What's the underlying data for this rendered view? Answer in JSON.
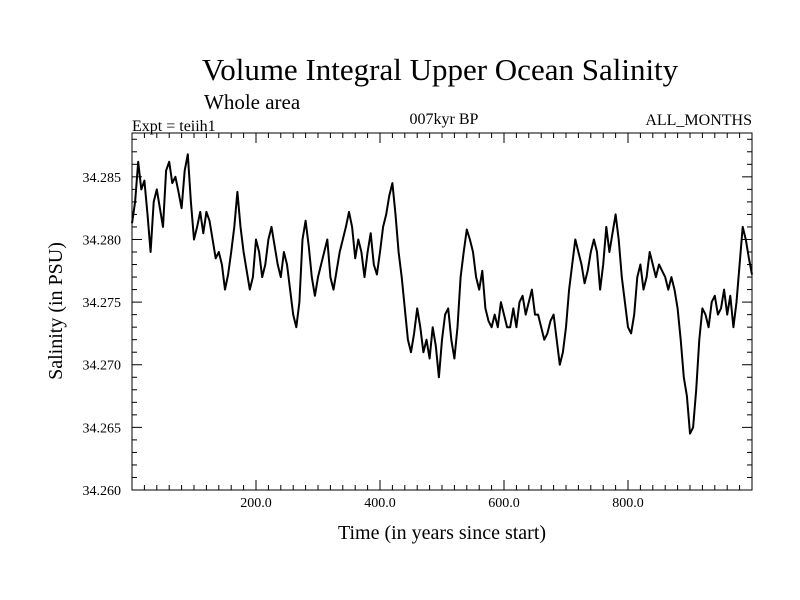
{
  "chart_data": {
    "type": "line",
    "title": "Volume Integral Upper Ocean Salinity",
    "subtitle": "Whole area",
    "expt": "Expt = teiih1",
    "period": "007kyr BP",
    "months": "ALL_MONTHS",
    "xlabel": "Time (in years since start)",
    "ylabel": "Salinity (in PSU)",
    "xlim": [
      0,
      1000
    ],
    "ylim": [
      34.26,
      34.2885
    ],
    "xticks": [
      200,
      400,
      600,
      800
    ],
    "xtick_labels": [
      "200.0",
      "400.0",
      "600.0",
      "800.0"
    ],
    "yticks": [
      34.26,
      34.265,
      34.27,
      34.275,
      34.28,
      34.285
    ],
    "ytick_labels": [
      "34.260",
      "34.265",
      "34.270",
      "34.275",
      "34.280",
      "34.285"
    ],
    "grid": false,
    "series": [
      {
        "color": "#000000",
        "x": [
          0,
          5,
          10,
          15,
          20,
          25,
          30,
          35,
          40,
          45,
          50,
          55,
          60,
          65,
          70,
          75,
          80,
          85,
          90,
          95,
          100,
          105,
          110,
          115,
          120,
          125,
          130,
          135,
          140,
          145,
          150,
          155,
          160,
          165,
          170,
          175,
          180,
          185,
          190,
          195,
          200,
          205,
          210,
          215,
          220,
          225,
          230,
          235,
          240,
          245,
          250,
          255,
          260,
          265,
          270,
          275,
          280,
          285,
          290,
          295,
          300,
          305,
          310,
          315,
          320,
          325,
          330,
          335,
          340,
          345,
          350,
          355,
          360,
          365,
          370,
          375,
          380,
          385,
          390,
          395,
          400,
          405,
          410,
          415,
          420,
          425,
          430,
          435,
          440,
          445,
          450,
          455,
          460,
          465,
          470,
          475,
          480,
          485,
          490,
          495,
          500,
          505,
          510,
          515,
          520,
          525,
          530,
          535,
          540,
          545,
          550,
          555,
          560,
          565,
          570,
          575,
          580,
          585,
          590,
          595,
          600,
          605,
          610,
          615,
          620,
          625,
          630,
          635,
          640,
          645,
          650,
          655,
          660,
          665,
          670,
          675,
          680,
          685,
          690,
          695,
          700,
          705,
          710,
          715,
          720,
          725,
          730,
          735,
          740,
          745,
          750,
          755,
          760,
          765,
          770,
          775,
          780,
          785,
          790,
          795,
          800,
          805,
          810,
          815,
          820,
          825,
          830,
          835,
          840,
          845,
          850,
          855,
          860,
          865,
          870,
          875,
          880,
          885,
          890,
          895,
          900,
          905,
          910,
          915,
          920,
          925,
          930,
          935,
          940,
          945,
          950,
          955,
          960,
          965,
          970,
          975,
          980,
          985,
          990,
          995,
          1000
        ],
        "y": [
          34.2813,
          34.283,
          34.2862,
          34.284,
          34.2847,
          34.282,
          34.279,
          34.283,
          34.284,
          34.2825,
          34.281,
          34.2855,
          34.2862,
          34.2845,
          34.285,
          34.2838,
          34.2825,
          34.2855,
          34.2868,
          34.283,
          34.28,
          34.281,
          34.2822,
          34.2805,
          34.2822,
          34.2815,
          34.28,
          34.2785,
          34.279,
          34.278,
          34.276,
          34.2772,
          34.279,
          34.281,
          34.2838,
          34.281,
          34.279,
          34.2775,
          34.276,
          34.277,
          34.28,
          34.279,
          34.277,
          34.278,
          34.28,
          34.281,
          34.2795,
          34.278,
          34.277,
          34.279,
          34.278,
          34.276,
          34.274,
          34.273,
          34.275,
          34.28,
          34.2815,
          34.2795,
          34.277,
          34.2755,
          34.277,
          34.278,
          34.279,
          34.28,
          34.277,
          34.276,
          34.2775,
          34.279,
          34.28,
          34.281,
          34.2822,
          34.281,
          34.2785,
          34.28,
          34.279,
          34.277,
          34.279,
          34.2805,
          34.278,
          34.2772,
          34.279,
          34.281,
          34.282,
          34.2835,
          34.2845,
          34.282,
          34.279,
          34.277,
          34.2745,
          34.272,
          34.271,
          34.2725,
          34.2745,
          34.273,
          34.271,
          34.272,
          34.2705,
          34.273,
          34.2715,
          34.269,
          34.272,
          34.274,
          34.2745,
          34.272,
          34.2705,
          34.273,
          34.277,
          34.279,
          34.2808,
          34.28,
          34.279,
          34.277,
          34.276,
          34.2775,
          34.2745,
          34.2735,
          34.273,
          34.274,
          34.273,
          34.275,
          34.274,
          34.273,
          34.273,
          34.2745,
          34.273,
          34.275,
          34.2755,
          34.274,
          34.275,
          34.276,
          34.274,
          34.274,
          34.273,
          34.272,
          34.2725,
          34.2735,
          34.274,
          34.272,
          34.27,
          34.271,
          34.273,
          34.276,
          34.278,
          34.28,
          34.279,
          34.278,
          34.2765,
          34.2775,
          34.279,
          34.28,
          34.279,
          34.276,
          34.278,
          34.281,
          34.279,
          34.2805,
          34.282,
          34.28,
          34.277,
          34.275,
          34.273,
          34.2725,
          34.274,
          34.277,
          34.278,
          34.276,
          34.277,
          34.279,
          34.278,
          34.277,
          34.278,
          34.2775,
          34.277,
          34.276,
          34.277,
          34.276,
          34.2745,
          34.272,
          34.269,
          34.2675,
          34.2645,
          34.265,
          34.268,
          34.272,
          34.2745,
          34.274,
          34.273,
          34.275,
          34.2755,
          34.274,
          34.2745,
          34.276,
          34.274,
          34.2755,
          34.273,
          34.275,
          34.278,
          34.281,
          34.28,
          34.2785,
          34.2772
        ]
      }
    ]
  }
}
